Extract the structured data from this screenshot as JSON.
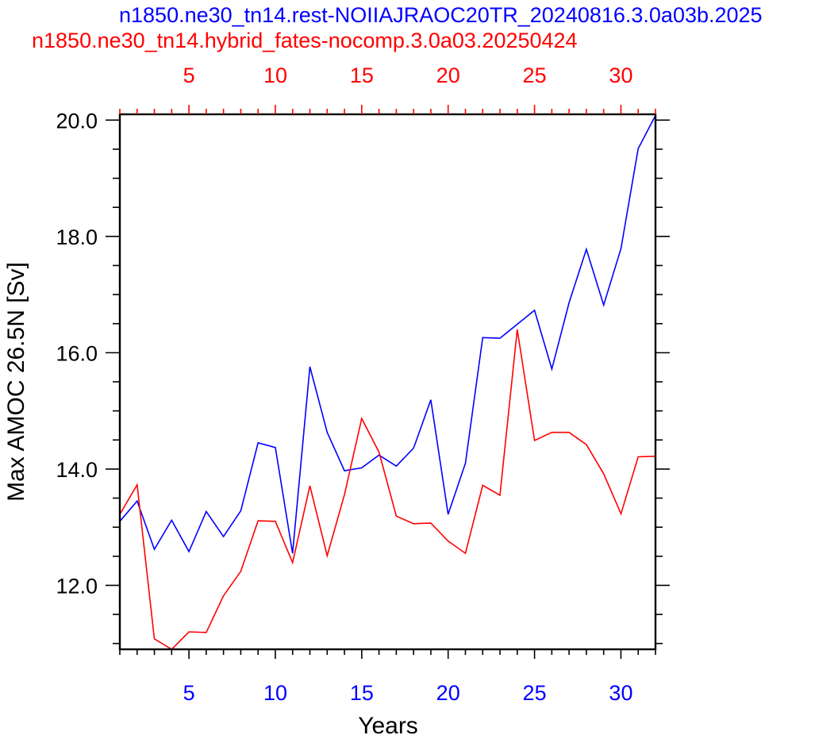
{
  "chart_data": {
    "type": "line",
    "title_blue": "n1850.ne30_tn14.rest-NOIIAJRAOC20TR_20240816.3.0a03b.2025",
    "title_red": "n1850.ne30_tn14.hybrid_fates-nocomp.3.0a03.20250424",
    "xlabel": "Years",
    "ylabel": "Max AMOC 26.5N [Sv]",
    "xlim": [
      1,
      32
    ],
    "ylim": [
      10.9,
      20.1
    ],
    "y_ticks": [
      12.0,
      14.0,
      16.0,
      18.0,
      20.0
    ],
    "y_tick_labels": [
      "12.0",
      "14.0",
      "16.0",
      "18.0",
      "20.0"
    ],
    "x_ticks": [
      5,
      10,
      15,
      20,
      25,
      30
    ],
    "x_tick_labels": [
      "5",
      "10",
      "15",
      "20",
      "25",
      "30"
    ],
    "top_x_tick_labels": [
      "5",
      "10",
      "15",
      "20",
      "25",
      "30"
    ],
    "grid": false,
    "colors": {
      "blue_series": "#0000ff",
      "red_series": "#ff0000",
      "axis": "#000000"
    },
    "series": [
      {
        "color": "#0000ff",
        "x": [
          1,
          2,
          3,
          4,
          5,
          6,
          7,
          8,
          9,
          10,
          11,
          12,
          13,
          14,
          15,
          16,
          17,
          18,
          19,
          20,
          21,
          22,
          23,
          24,
          25,
          26,
          27,
          28,
          29,
          30,
          31,
          32
        ],
        "values": [
          13.1,
          13.45,
          12.62,
          13.12,
          12.58,
          13.27,
          12.84,
          13.28,
          14.45,
          14.37,
          12.55,
          15.76,
          14.63,
          13.97,
          14.02,
          14.24,
          14.05,
          14.36,
          15.19,
          13.22,
          14.1,
          16.26,
          16.25,
          16.49,
          16.73,
          15.72,
          16.86,
          17.78,
          16.82,
          17.79,
          19.51,
          20.08
        ]
      },
      {
        "color": "#ff0000",
        "x": [
          1,
          2,
          3,
          4,
          5,
          6,
          7,
          8,
          9,
          10,
          11,
          12,
          13,
          14,
          15,
          16,
          17,
          18,
          19,
          20,
          21,
          22,
          23,
          24,
          25,
          26,
          27,
          28,
          29,
          30,
          31,
          32
        ],
        "values": [
          13.22,
          13.73,
          11.08,
          10.9,
          11.2,
          11.19,
          11.82,
          12.24,
          13.11,
          13.1,
          12.39,
          13.71,
          12.51,
          13.56,
          14.87,
          14.29,
          13.19,
          13.06,
          13.07,
          12.76,
          12.55,
          13.72,
          13.55,
          16.4,
          14.49,
          14.63,
          14.63,
          14.42,
          13.92,
          13.23,
          14.21,
          14.22
        ]
      }
    ]
  }
}
